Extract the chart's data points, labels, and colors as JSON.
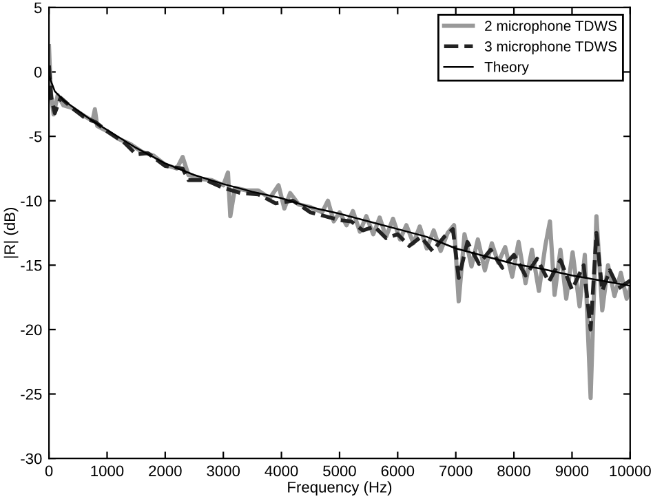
{
  "chart_data": {
    "type": "line",
    "xlabel": "Frequency (Hz)",
    "ylabel": "|R| (dB)",
    "xlim": [
      0,
      10000
    ],
    "ylim": [
      -30,
      5
    ],
    "xticks": [
      0,
      1000,
      2000,
      3000,
      4000,
      5000,
      6000,
      7000,
      8000,
      9000,
      10000
    ],
    "yticks": [
      -30,
      -25,
      -20,
      -15,
      -10,
      -5,
      0,
      5
    ],
    "grid": false,
    "legend": "top right",
    "marker": "none",
    "series": [
      {
        "name": "2 microphone TDWS",
        "color": "#999999",
        "line_style": "solid",
        "x": [
          0,
          30,
          80,
          150,
          250,
          400,
          600,
          750,
          790,
          830,
          1000,
          1200,
          1400,
          1600,
          1800,
          2000,
          2200,
          2300,
          2400,
          2600,
          2800,
          3000,
          3080,
          3120,
          3200,
          3400,
          3600,
          3800,
          3950,
          4050,
          4150,
          4300,
          4500,
          4700,
          4800,
          4900,
          5000,
          5120,
          5230,
          5350,
          5460,
          5580,
          5690,
          5800,
          5920,
          6040,
          6150,
          6270,
          6380,
          6500,
          6620,
          6740,
          6860,
          6970,
          7050,
          7150,
          7270,
          7380,
          7500,
          7620,
          7730,
          7850,
          7970,
          8080,
          8200,
          8310,
          8430,
          8540,
          8620,
          8700,
          8800,
          8900,
          9010,
          9130,
          9220,
          9320,
          9420,
          9520,
          9620,
          9730,
          9840,
          9940,
          10000
        ],
        "values": [
          2.0,
          -1.5,
          -3.3,
          -1.8,
          -2.6,
          -2.8,
          -3.4,
          -3.8,
          -2.9,
          -4.2,
          -4.6,
          -5.2,
          -5.6,
          -6.2,
          -6.5,
          -7.2,
          -7.5,
          -6.6,
          -8.0,
          -8.3,
          -8.4,
          -8.8,
          -7.8,
          -11.2,
          -9.0,
          -9.2,
          -9.2,
          -9.8,
          -8.8,
          -10.6,
          -9.4,
          -10.3,
          -10.5,
          -10.9,
          -10.0,
          -11.6,
          -10.9,
          -11.9,
          -10.8,
          -12.4,
          -11.2,
          -12.6,
          -11.3,
          -12.8,
          -11.4,
          -13.0,
          -11.9,
          -13.3,
          -12.0,
          -13.7,
          -12.3,
          -13.9,
          -12.5,
          -11.9,
          -17.8,
          -12.6,
          -15.1,
          -13.0,
          -15.4,
          -13.3,
          -14.8,
          -13.6,
          -15.9,
          -13.2,
          -16.4,
          -13.8,
          -17.0,
          -13.5,
          -11.6,
          -17.3,
          -13.8,
          -17.6,
          -14.0,
          -18.2,
          -14.2,
          -25.3,
          -11.2,
          -18.5,
          -15.0,
          -17.4,
          -15.6,
          -17.6,
          -16.8
        ]
      },
      {
        "name": "3 microphone TDWS",
        "color": "#222222",
        "line_style": "dashed",
        "x": [
          0,
          40,
          100,
          200,
          400,
          600,
          800,
          1000,
          1300,
          1500,
          1700,
          2000,
          2300,
          2400,
          2700,
          3000,
          3300,
          3600,
          3900,
          4200,
          4500,
          4750,
          5000,
          5200,
          5400,
          5600,
          5800,
          6000,
          6200,
          6400,
          6600,
          6800,
          6950,
          7050,
          7200,
          7400,
          7600,
          7800,
          8000,
          8200,
          8400,
          8600,
          8800,
          9000,
          9200,
          9320,
          9420,
          9520,
          9650,
          9800,
          10000
        ],
        "values": [
          0.5,
          -2.0,
          -3.2,
          -2.0,
          -2.8,
          -3.5,
          -3.9,
          -4.6,
          -5.5,
          -6.4,
          -6.3,
          -7.3,
          -7.5,
          -8.4,
          -8.4,
          -9.0,
          -9.4,
          -9.5,
          -10.2,
          -10.0,
          -10.9,
          -11.2,
          -11.5,
          -11.6,
          -12.3,
          -12.0,
          -12.9,
          -12.6,
          -13.5,
          -12.8,
          -13.9,
          -12.8,
          -12.2,
          -16.0,
          -13.2,
          -14.9,
          -13.8,
          -15.2,
          -14.2,
          -15.8,
          -14.5,
          -16.3,
          -14.6,
          -16.9,
          -15.0,
          -20.0,
          -12.5,
          -17.0,
          -15.4,
          -16.8,
          -16.2
        ]
      },
      {
        "name": "Theory",
        "color": "#000000",
        "line_style": "solid",
        "x": [
          0,
          100,
          250,
          500,
          750,
          1000,
          1500,
          2000,
          2500,
          3000,
          3500,
          4000,
          4500,
          5000,
          5500,
          6000,
          6500,
          7000,
          7500,
          8000,
          8500,
          9000,
          9500,
          10000
        ],
        "values": [
          -0.3,
          -1.5,
          -2.2,
          -3.0,
          -3.8,
          -4.5,
          -5.9,
          -7.1,
          -8.0,
          -8.7,
          -9.3,
          -9.8,
          -10.5,
          -11.0,
          -11.6,
          -12.2,
          -12.8,
          -13.7,
          -14.3,
          -14.9,
          -15.3,
          -15.8,
          -16.2,
          -16.6
        ]
      }
    ]
  }
}
